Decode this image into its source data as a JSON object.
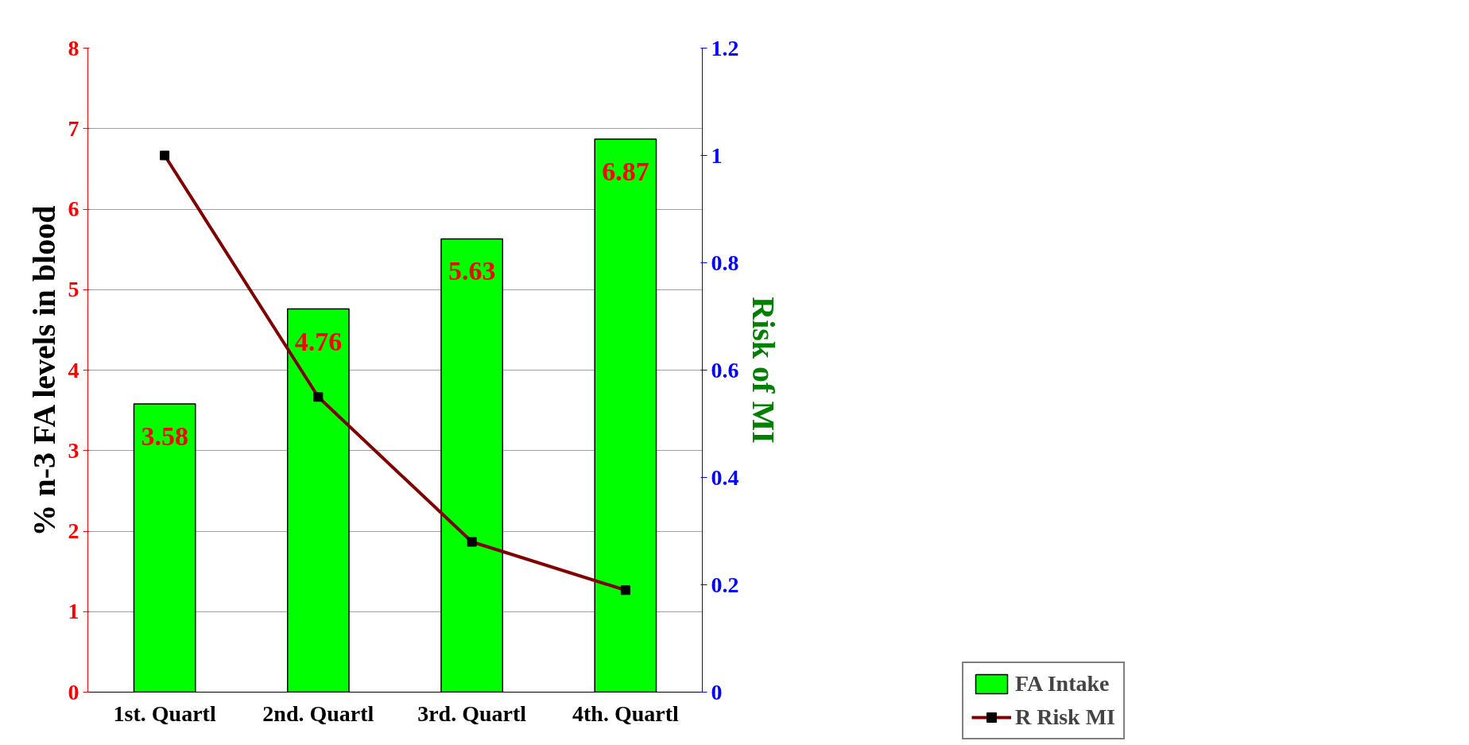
{
  "chart_data": {
    "type": "bar",
    "categories": [
      "1st. Quartl",
      "2nd. Quartl",
      "3rd. Quartl",
      "4th. Quartl"
    ],
    "ylabel": "% n-3 FA levels in blood",
    "y2label": "Risk of MI",
    "ylim": [
      0,
      8
    ],
    "yticks": [
      0,
      1,
      2,
      3,
      4,
      5,
      6,
      7,
      8
    ],
    "y2lim": [
      0,
      1.2
    ],
    "y2ticks": [
      {
        "value": 0,
        "label": "0"
      },
      0.2,
      0.4,
      0.6,
      0.8,
      {
        "value": 1,
        "label": "1"
      },
      1.2
    ],
    "series": [
      {
        "name": "FA Intake",
        "color": "#00ff00",
        "values": [
          3.58,
          4.76,
          5.63,
          6.87
        ],
        "data_labels": true
      },
      {
        "name": "R Risk MI",
        "type": "line",
        "axis": "y2",
        "color": "#800000",
        "marker": "square",
        "values": [
          1.0,
          0.55,
          0.28,
          0.19
        ]
      }
    ],
    "grid": "y",
    "legend": "bottom right"
  }
}
